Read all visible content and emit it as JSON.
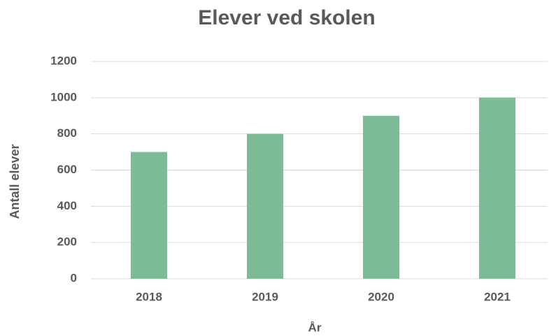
{
  "chart_data": {
    "type": "bar",
    "title": "Elever ved skolen",
    "x_label": "År",
    "y_label": "Antall elever",
    "categories": [
      "2018",
      "2019",
      "2020",
      "2021"
    ],
    "values": [
      700,
      800,
      900,
      1000
    ],
    "color": "#7dbb97",
    "ylim": [
      0,
      1200
    ],
    "yticks": [
      0,
      200,
      400,
      600,
      800,
      1000,
      1200
    ],
    "grid": true
  }
}
